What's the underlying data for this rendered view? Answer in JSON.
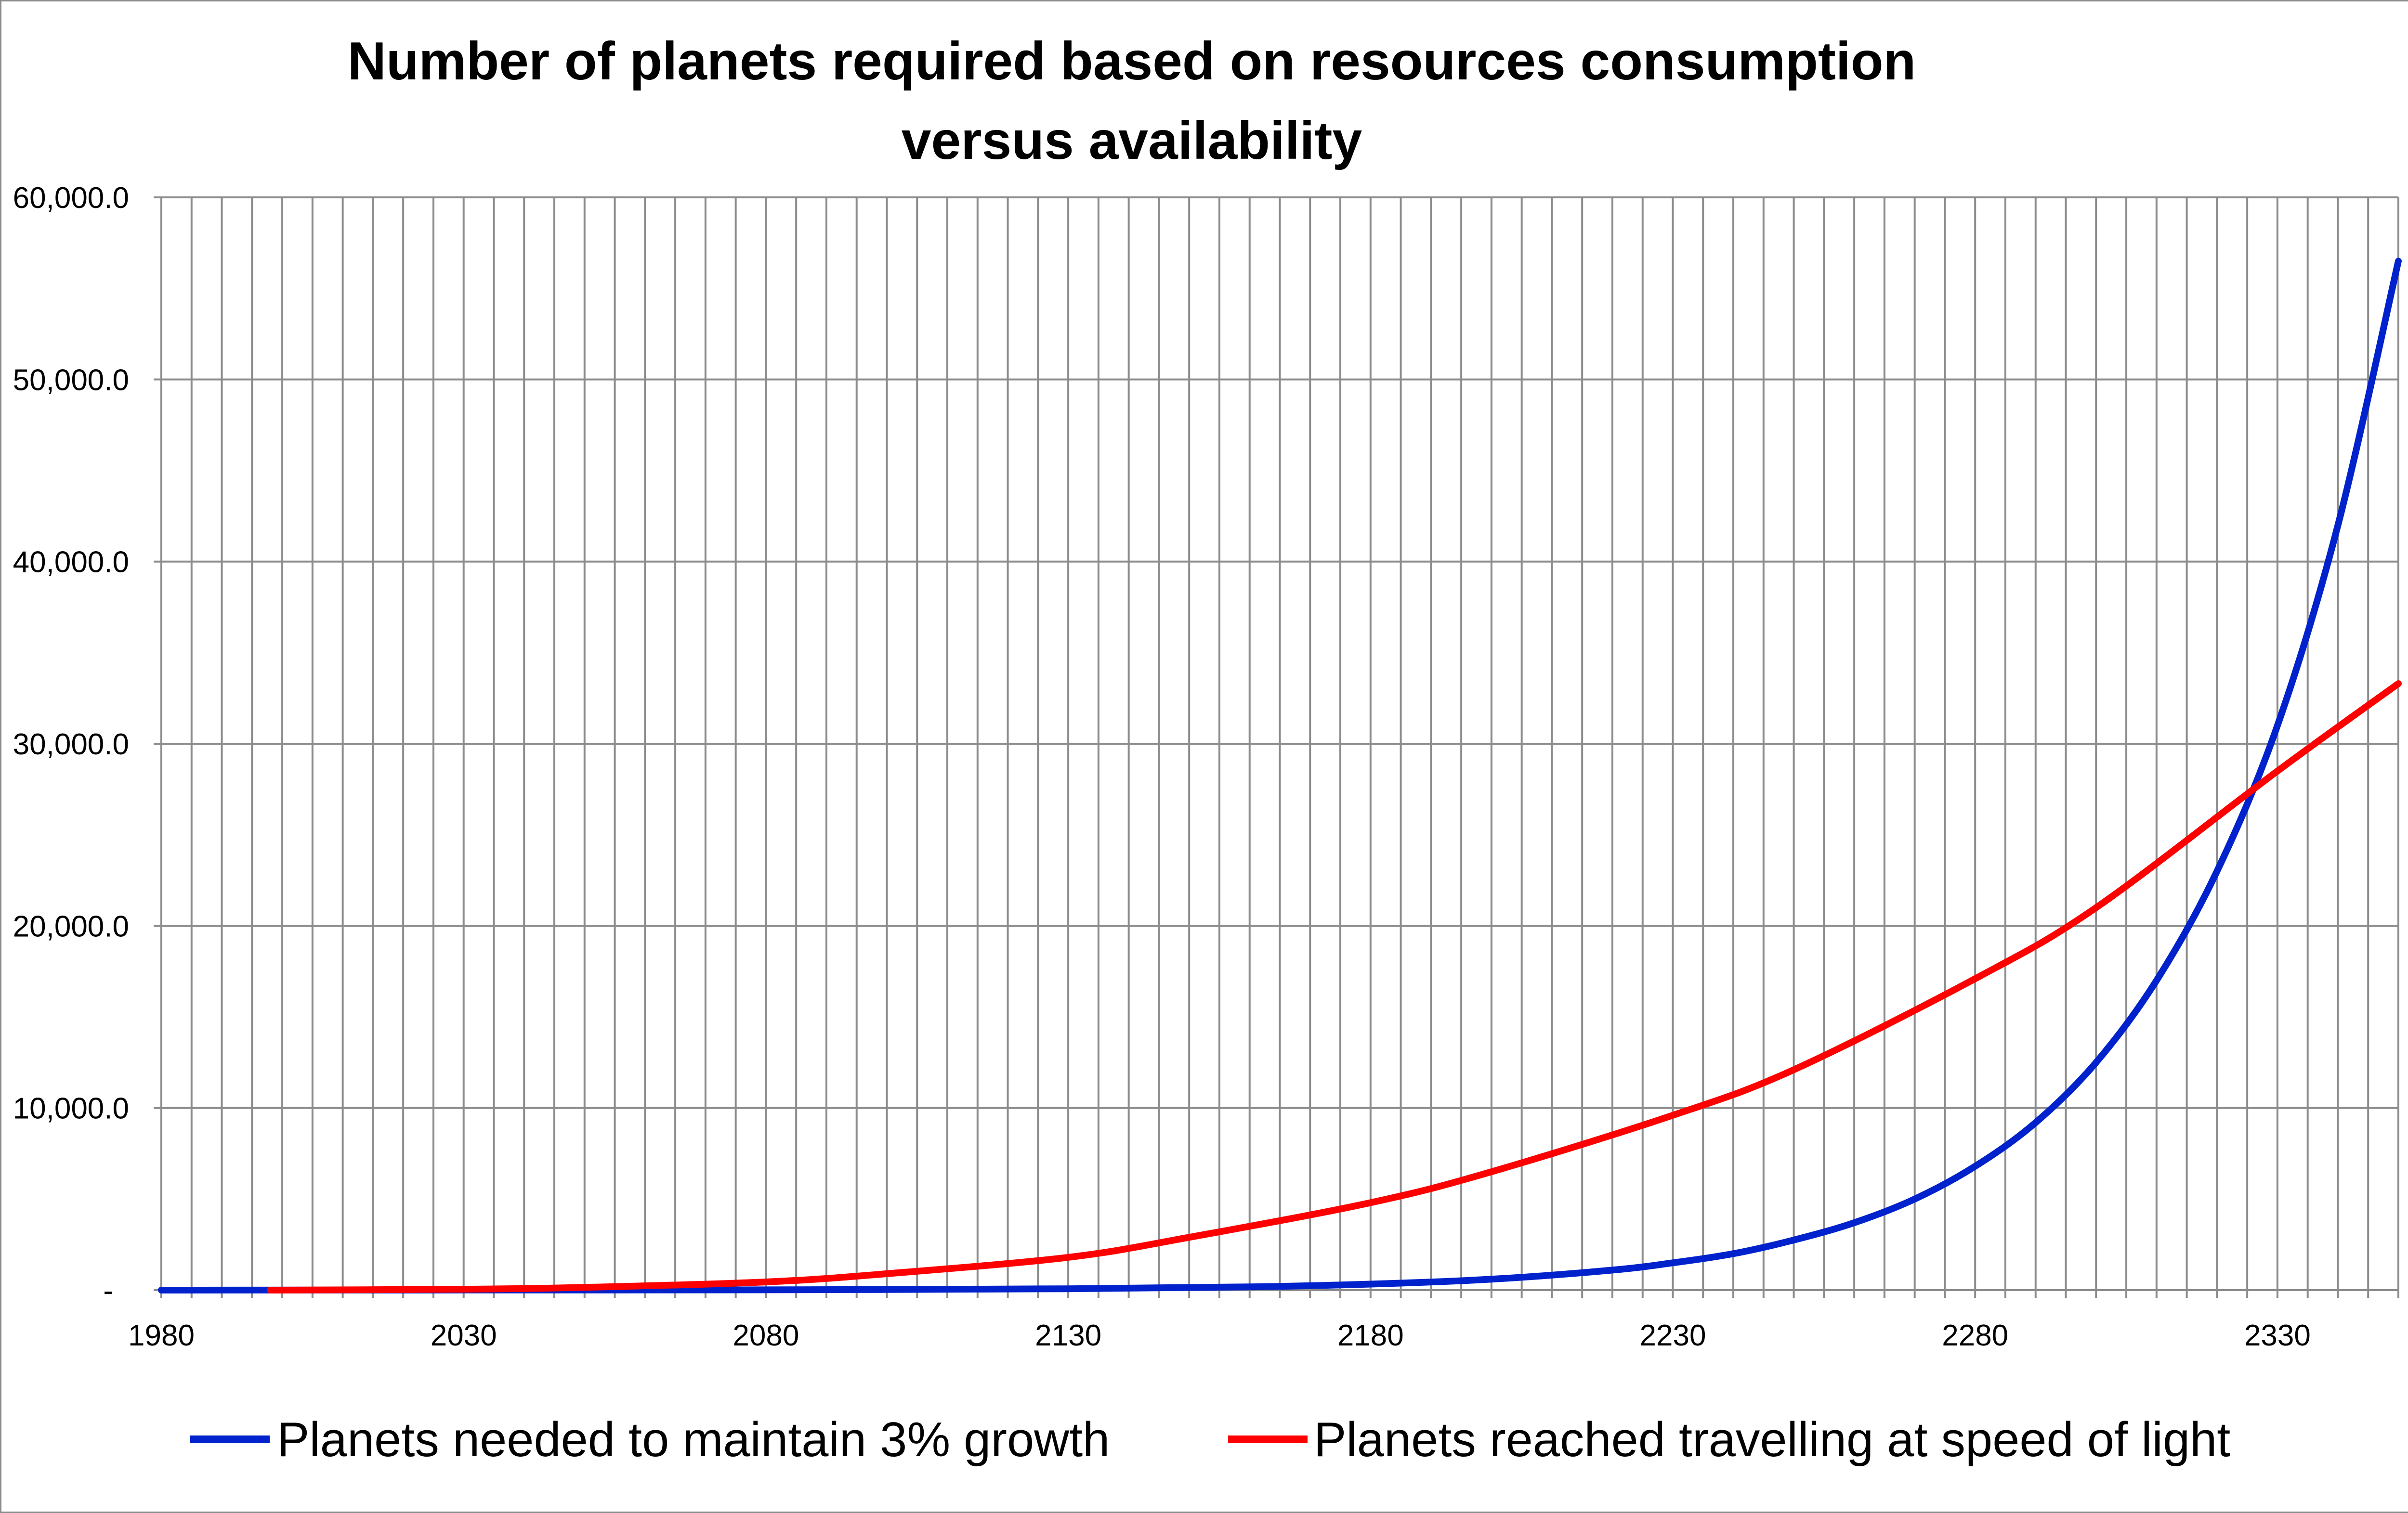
{
  "chart_data": {
    "type": "line",
    "title": "Number of planets required based on resources consumption versus availability",
    "title_lines": [
      "Number of planets required based on resources consumption",
      "versus availability"
    ],
    "xlabel": "",
    "ylabel": "",
    "xlim": [
      1980,
      2350
    ],
    "ylim": [
      0,
      60000
    ],
    "x_tick_labels": [
      "1980",
      "2030",
      "2080",
      "2130",
      "2180",
      "2230",
      "2280",
      "2330"
    ],
    "y_tick_labels": [
      "-",
      "10,000.0",
      "20,000.0",
      "30,000.0",
      "40,000.0",
      "50,000.0",
      "60,000.0"
    ],
    "grid": true,
    "legend_position": "bottom",
    "series": [
      {
        "name": "Planets needed to maintain 3% growth",
        "color": "#0022cc",
        "x": [
          1980,
          2000,
          2030,
          2080,
          2130,
          2160,
          2180,
          2200,
          2220,
          2230,
          2240,
          2250,
          2260,
          2270,
          2280,
          2290,
          2300,
          2310,
          2320,
          2330,
          2340,
          2350
        ],
        "y": [
          1,
          2,
          4,
          17,
          75,
          180,
          330,
          600,
          1100,
          1500,
          2000,
          2750,
          3700,
          5000,
          6800,
          9200,
          12500,
          17000,
          23000,
          31000,
          42000,
          56500
        ]
      },
      {
        "name": "Planets reached travelling at speed of light",
        "color": "#ff0000",
        "x": [
          1998,
          2030,
          2050,
          2080,
          2100,
          2130,
          2150,
          2180,
          2200,
          2230,
          2250,
          2280,
          2300,
          2330,
          2350
        ],
        "y": [
          0,
          50,
          150,
          450,
          900,
          1800,
          2900,
          4800,
          6500,
          9600,
          12100,
          17100,
          21000,
          28500,
          33300
        ]
      }
    ]
  }
}
